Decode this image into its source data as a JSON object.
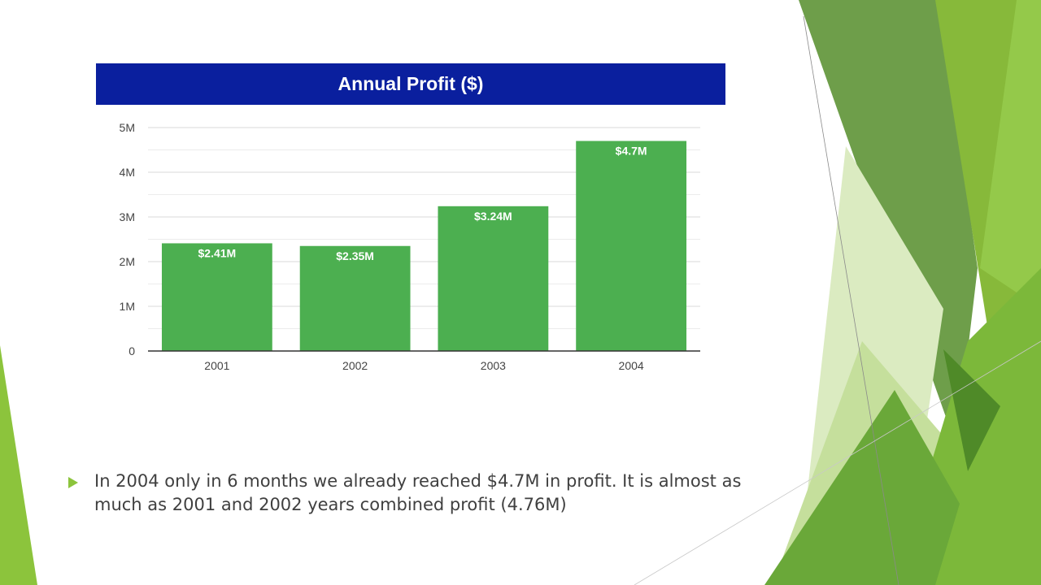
{
  "slide": {
    "bullet_text": "In 2004 only in 6 months we already reached $4.7M in profit. It is almost as much as 2001 and 2002 years combined profit (4.76M)",
    "accent_color": "#8cc43c"
  },
  "chart_data": {
    "type": "bar",
    "title": "Annual Profit ($)",
    "categories": [
      "2001",
      "2002",
      "2003",
      "2004"
    ],
    "values": [
      2.41,
      2.35,
      3.24,
      4.7
    ],
    "data_labels": [
      "$2.41M",
      "$2.35M",
      "$3.24M",
      "$4.7M"
    ],
    "y_ticks": [
      0,
      1,
      2,
      3,
      4,
      5
    ],
    "y_tick_labels": [
      "0",
      "1M",
      "2M",
      "3M",
      "4M",
      "5M"
    ],
    "ylim": [
      0,
      5
    ],
    "grid": true,
    "bar_color": "#4caf50",
    "title_bg_color": "#0a1f9e",
    "xlabel": "",
    "ylabel": ""
  }
}
